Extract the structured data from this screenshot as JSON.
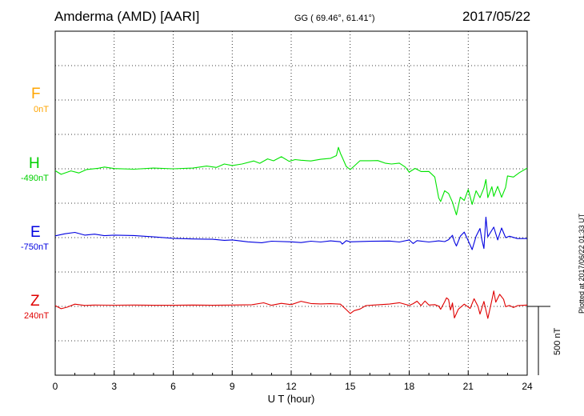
{
  "header": {
    "station": "Amderma (AMD)  [AARI]",
    "coords": "GG ( 69.46°,  61.41°)",
    "date": "2017/05/22"
  },
  "plotted_note": "Plotted at 2017/06/22 01:33 UT",
  "scale_label": "500 nT",
  "colors": {
    "F": "#ffa500",
    "H": "#00e400",
    "E": "#0000e0",
    "Z": "#e00000"
  },
  "chart_data": {
    "type": "line",
    "xlabel": "U T (hour)",
    "xlim": [
      0,
      24
    ],
    "x_ticks": [
      "0",
      "3",
      "6",
      "9",
      "12",
      "15",
      "18",
      "21",
      "24"
    ],
    "scale_nT": 500,
    "grid": true,
    "series": [
      {
        "name": "F",
        "baseline": "0nT",
        "points": []
      },
      {
        "name": "H",
        "baseline": "-490nT",
        "points": [
          [
            0,
            -504
          ],
          [
            0.3,
            -530
          ],
          [
            0.8,
            -505
          ],
          [
            1.2,
            -520
          ],
          [
            1.6,
            -495
          ],
          [
            2.2,
            -486
          ],
          [
            2.5,
            -477
          ],
          [
            3.0,
            -488
          ],
          [
            4.0,
            -493
          ],
          [
            5.0,
            -485
          ],
          [
            6.0,
            -490
          ],
          [
            7.0,
            -485
          ],
          [
            7.7,
            -470
          ],
          [
            8.2,
            -480
          ],
          [
            8.6,
            -455
          ],
          [
            9.0,
            -466
          ],
          [
            9.5,
            -455
          ],
          [
            10.1,
            -433
          ],
          [
            10.4,
            -450
          ],
          [
            10.8,
            -418
          ],
          [
            11.1,
            -432
          ],
          [
            11.5,
            -402
          ],
          [
            11.9,
            -436
          ],
          [
            12.2,
            -423
          ],
          [
            12.5,
            -428
          ],
          [
            13.0,
            -433
          ],
          [
            13.5,
            -421
          ],
          [
            14.0,
            -414
          ],
          [
            14.3,
            -394
          ],
          [
            14.4,
            -334
          ],
          [
            14.5,
            -377
          ],
          [
            14.6,
            -408
          ],
          [
            14.8,
            -473
          ],
          [
            15.0,
            -496
          ],
          [
            15.2,
            -470
          ],
          [
            15.5,
            -431
          ],
          [
            16.0,
            -431
          ],
          [
            16.4,
            -430
          ],
          [
            16.8,
            -450
          ],
          [
            17.1,
            -455
          ],
          [
            17.5,
            -449
          ],
          [
            17.8,
            -477
          ],
          [
            18.0,
            -514
          ],
          [
            18.3,
            -487
          ],
          [
            18.6,
            -510
          ],
          [
            19.0,
            -509
          ],
          [
            19.3,
            -550
          ],
          [
            19.5,
            -702
          ],
          [
            19.6,
            -728
          ],
          [
            19.8,
            -650
          ],
          [
            20.0,
            -669
          ],
          [
            20.2,
            -733
          ],
          [
            20.4,
            -825
          ],
          [
            20.6,
            -696
          ],
          [
            20.8,
            -720
          ],
          [
            21.0,
            -640
          ],
          [
            21.2,
            -749
          ],
          [
            21.4,
            -650
          ],
          [
            21.6,
            -700
          ],
          [
            21.8,
            -629
          ],
          [
            21.9,
            -568
          ],
          [
            22.0,
            -700
          ],
          [
            22.2,
            -620
          ],
          [
            22.3,
            -690
          ],
          [
            22.5,
            -618
          ],
          [
            22.7,
            -697
          ],
          [
            22.9,
            -625
          ],
          [
            23.0,
            -542
          ],
          [
            23.3,
            -550
          ],
          [
            23.6,
            -518
          ],
          [
            24.0,
            -485
          ]
        ]
      },
      {
        "name": "E",
        "baseline": "-750nT",
        "points": [
          [
            0,
            -737
          ],
          [
            0.5,
            -722
          ],
          [
            1.0,
            -712
          ],
          [
            1.5,
            -732
          ],
          [
            2.0,
            -725
          ],
          [
            2.5,
            -736
          ],
          [
            3.0,
            -732
          ],
          [
            4.0,
            -735
          ],
          [
            5.0,
            -745
          ],
          [
            6.0,
            -755
          ],
          [
            7.0,
            -760
          ],
          [
            8.0,
            -762
          ],
          [
            8.6,
            -770
          ],
          [
            9.0,
            -767
          ],
          [
            9.8,
            -781
          ],
          [
            10.5,
            -787
          ],
          [
            11.0,
            -776
          ],
          [
            12.0,
            -781
          ],
          [
            12.5,
            -786
          ],
          [
            13.0,
            -776
          ],
          [
            13.5,
            -782
          ],
          [
            14.0,
            -774
          ],
          [
            14.5,
            -780
          ],
          [
            14.6,
            -797
          ],
          [
            14.8,
            -772
          ],
          [
            15.0,
            -781
          ],
          [
            16.0,
            -777
          ],
          [
            17.0,
            -775
          ],
          [
            17.5,
            -782
          ],
          [
            18.0,
            -767
          ],
          [
            18.2,
            -793
          ],
          [
            18.4,
            -772
          ],
          [
            19.0,
            -782
          ],
          [
            19.5,
            -774
          ],
          [
            19.8,
            -779
          ],
          [
            20.0,
            -765
          ],
          [
            20.2,
            -733
          ],
          [
            20.3,
            -780
          ],
          [
            20.4,
            -811
          ],
          [
            20.6,
            -740
          ],
          [
            20.8,
            -710
          ],
          [
            21.0,
            -773
          ],
          [
            21.2,
            -837
          ],
          [
            21.4,
            -740
          ],
          [
            21.6,
            -684
          ],
          [
            21.7,
            -770
          ],
          [
            21.8,
            -829
          ],
          [
            21.9,
            -601
          ],
          [
            22.0,
            -744
          ],
          [
            22.3,
            -674
          ],
          [
            22.5,
            -767
          ],
          [
            22.7,
            -680
          ],
          [
            22.9,
            -750
          ],
          [
            23.1,
            -740
          ],
          [
            23.5,
            -757
          ],
          [
            24.0,
            -757
          ]
        ]
      },
      {
        "name": "Z",
        "baseline": "240nT",
        "points": [
          [
            0,
            246
          ],
          [
            0.3,
            223
          ],
          [
            0.6,
            234
          ],
          [
            1.0,
            256
          ],
          [
            1.5,
            247
          ],
          [
            2.0,
            250
          ],
          [
            3.0,
            249
          ],
          [
            4.0,
            250
          ],
          [
            5.0,
            248
          ],
          [
            6.0,
            248
          ],
          [
            7.0,
            250
          ],
          [
            8.0,
            248
          ],
          [
            9.0,
            250
          ],
          [
            10.0,
            252
          ],
          [
            10.6,
            266
          ],
          [
            11.0,
            248
          ],
          [
            11.5,
            262
          ],
          [
            12.0,
            253
          ],
          [
            12.5,
            277
          ],
          [
            13.0,
            261
          ],
          [
            13.5,
            258
          ],
          [
            14.0,
            260
          ],
          [
            14.5,
            256
          ],
          [
            14.8,
            217
          ],
          [
            15.0,
            188
          ],
          [
            15.2,
            209
          ],
          [
            15.5,
            221
          ],
          [
            15.8,
            246
          ],
          [
            16.2,
            250
          ],
          [
            17.0,
            257
          ],
          [
            17.5,
            267
          ],
          [
            18.0,
            247
          ],
          [
            18.2,
            260
          ],
          [
            18.4,
            278
          ],
          [
            18.6,
            246
          ],
          [
            18.8,
            279
          ],
          [
            19.0,
            250
          ],
          [
            19.3,
            253
          ],
          [
            19.5,
            242
          ],
          [
            19.6,
            219
          ],
          [
            19.8,
            273
          ],
          [
            19.9,
            302
          ],
          [
            20.0,
            290
          ],
          [
            20.1,
            214
          ],
          [
            20.2,
            265
          ],
          [
            20.3,
            156
          ],
          [
            20.5,
            220
          ],
          [
            20.8,
            256
          ],
          [
            21.1,
            225
          ],
          [
            21.3,
            296
          ],
          [
            21.5,
            240
          ],
          [
            21.6,
            184
          ],
          [
            21.8,
            276
          ],
          [
            22.0,
            153
          ],
          [
            22.2,
            284
          ],
          [
            22.3,
            352
          ],
          [
            22.4,
            271
          ],
          [
            22.6,
            328
          ],
          [
            22.8,
            291
          ],
          [
            22.9,
            238
          ],
          [
            23.1,
            247
          ],
          [
            23.3,
            232
          ],
          [
            23.5,
            245
          ],
          [
            24.0,
            250
          ]
        ]
      }
    ]
  }
}
